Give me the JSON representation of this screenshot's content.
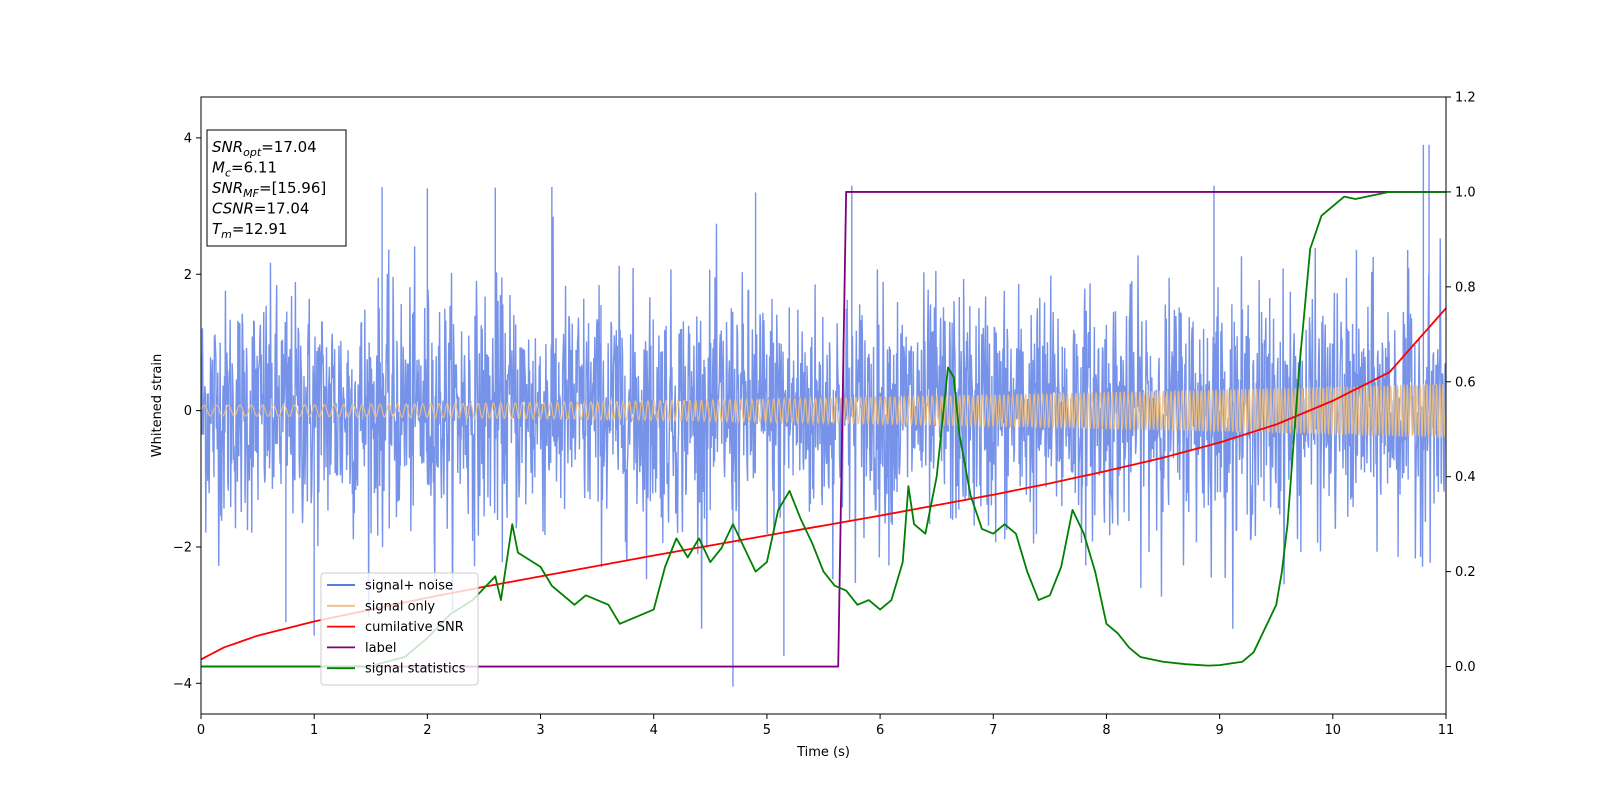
{
  "chart_data": {
    "type": "line",
    "xlabel": "Time (s)",
    "ylabel": "Whitened strain",
    "xlim": [
      0,
      11
    ],
    "ylim": [
      -4.45,
      4.6
    ],
    "y2lim": [
      -0.1,
      1.2
    ],
    "xticks": [
      0,
      1,
      2,
      3,
      4,
      5,
      6,
      7,
      8,
      9,
      10,
      11
    ],
    "yticks": [
      -4,
      -2,
      0,
      2,
      4
    ],
    "y2ticks": [
      0.0,
      0.2,
      0.4,
      0.6,
      0.8,
      1.0,
      1.2
    ],
    "grid": false,
    "legend_position": "lower-left",
    "annotation": [
      {
        "var": "SNR",
        "sub": "opt",
        "value": "=17.04"
      },
      {
        "var": "M",
        "sub": "c",
        "value": "=6.11"
      },
      {
        "var": "SNR",
        "sub": "MF",
        "value": "=[15.96]"
      },
      {
        "var": "CSNR",
        "sub": "",
        "value": "=17.04"
      },
      {
        "var": "T",
        "sub": "m",
        "value": "=12.91"
      }
    ],
    "series": [
      {
        "name": "signal+ noise",
        "color": "#4169e1",
        "axis": "left",
        "kind": "noisy_band",
        "typical_amplitude": 1.4,
        "peak_values": [
          3.28,
          3.27,
          3.26,
          3.3,
          3.2,
          3.3,
          3.28,
          3.9,
          3.9,
          -4.05,
          -3.6,
          -3.3,
          -3.1
        ]
      },
      {
        "name": "signal only",
        "color": "#f0c080",
        "axis": "left",
        "kind": "chirp",
        "amplitude_start": 0.08,
        "amplitude_end": 0.4
      },
      {
        "name": "cumilative SNR",
        "color": "#ff0000",
        "axis": "right",
        "x": [
          0,
          0.2,
          0.5,
          1,
          1.5,
          2,
          2.5,
          3,
          3.5,
          4,
          4.5,
          5,
          5.5,
          6,
          6.5,
          7,
          7.5,
          8,
          8.5,
          9,
          9.5,
          10,
          10.5,
          11
        ],
        "y": [
          0.015,
          0.04,
          0.065,
          0.095,
          0.12,
          0.145,
          0.168,
          0.19,
          0.212,
          0.234,
          0.255,
          0.276,
          0.297,
          0.318,
          0.34,
          0.362,
          0.386,
          0.412,
          0.44,
          0.472,
          0.51,
          0.56,
          0.62,
          0.755
        ]
      },
      {
        "name": "label",
        "color": "#800080",
        "axis": "right",
        "x": [
          0,
          5.63,
          5.7,
          11
        ],
        "y": [
          0.0,
          0.0,
          1.0,
          1.0
        ]
      },
      {
        "name": "signal statistics",
        "color": "#008000",
        "axis": "right",
        "x": [
          0,
          0.5,
          1,
          1.5,
          1.8,
          2,
          2.2,
          2.4,
          2.6,
          2.65,
          2.7,
          2.75,
          2.8,
          3,
          3.1,
          3.2,
          3.3,
          3.4,
          3.5,
          3.6,
          3.7,
          3.8,
          3.9,
          4,
          4.1,
          4.2,
          4.3,
          4.4,
          4.5,
          4.6,
          4.7,
          4.8,
          4.9,
          5,
          5.1,
          5.2,
          5.3,
          5.4,
          5.5,
          5.6,
          5.7,
          5.8,
          5.9,
          6,
          6.1,
          6.2,
          6.25,
          6.3,
          6.4,
          6.5,
          6.6,
          6.65,
          6.7,
          6.8,
          6.9,
          7,
          7.1,
          7.2,
          7.3,
          7.4,
          7.5,
          7.6,
          7.7,
          7.8,
          7.9,
          8,
          8.1,
          8.2,
          8.3,
          8.5,
          8.7,
          8.9,
          9,
          9.2,
          9.3,
          9.4,
          9.5,
          9.55,
          9.6,
          9.7,
          9.8,
          9.9,
          10,
          10.1,
          10.2,
          10.3,
          10.4,
          10.5,
          10.7,
          11
        ],
        "y": [
          0.0,
          0.0,
          0.0,
          0.001,
          0.02,
          0.06,
          0.11,
          0.14,
          0.19,
          0.14,
          0.22,
          0.3,
          0.24,
          0.21,
          0.17,
          0.15,
          0.13,
          0.15,
          0.14,
          0.13,
          0.09,
          0.1,
          0.11,
          0.12,
          0.21,
          0.27,
          0.23,
          0.27,
          0.22,
          0.25,
          0.3,
          0.25,
          0.2,
          0.22,
          0.33,
          0.37,
          0.31,
          0.26,
          0.2,
          0.17,
          0.16,
          0.13,
          0.14,
          0.12,
          0.14,
          0.22,
          0.38,
          0.3,
          0.28,
          0.4,
          0.63,
          0.61,
          0.49,
          0.36,
          0.29,
          0.28,
          0.3,
          0.28,
          0.2,
          0.14,
          0.15,
          0.21,
          0.33,
          0.28,
          0.2,
          0.09,
          0.07,
          0.04,
          0.02,
          0.01,
          0.005,
          0.002,
          0.003,
          0.01,
          0.03,
          0.08,
          0.13,
          0.2,
          0.3,
          0.62,
          0.88,
          0.95,
          0.97,
          0.99,
          0.985,
          0.99,
          0.995,
          1.0,
          1.0,
          1.0
        ]
      }
    ]
  }
}
